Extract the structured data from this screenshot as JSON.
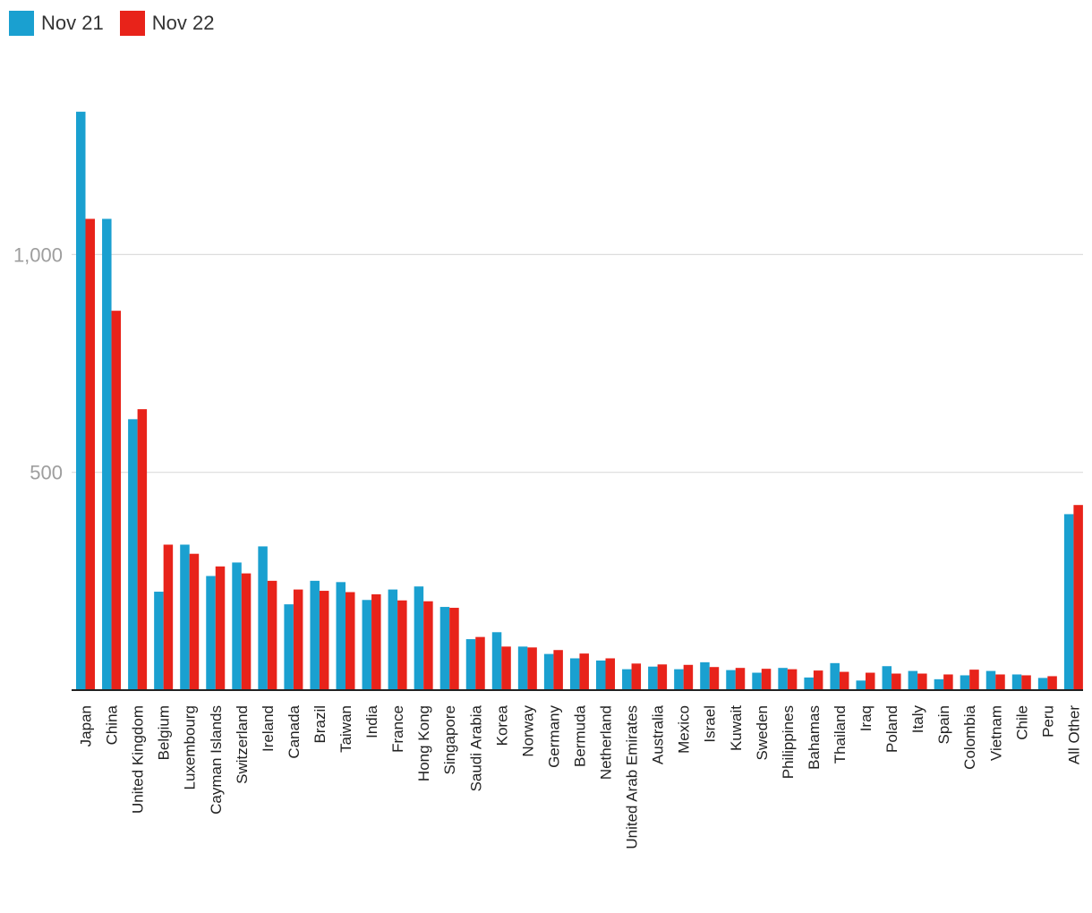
{
  "chart_data": {
    "type": "bar",
    "title": "",
    "xlabel": "",
    "ylabel": "",
    "ylim": [
      0,
      1400
    ],
    "yticks": [
      500,
      1000
    ],
    "ytick_labels": [
      "500",
      "1,000"
    ],
    "grid": true,
    "legend": "top-left",
    "categories": [
      "Japan",
      "China",
      "United Kingdom",
      "Belgium",
      "Luxembourg",
      "Cayman Islands",
      "Switzerland",
      "Ireland",
      "Canada",
      "Brazil",
      "Taiwan",
      "India",
      "France",
      "Hong Kong",
      "Singapore",
      "Saudi Arabia",
      "Korea",
      "Norway",
      "Germany",
      "Bermuda",
      "Netherland",
      "United Arab Emirates",
      "Australia",
      "Mexico",
      "Israel",
      "Kuwait",
      "Sweden",
      "Philippines",
      "Bahamas",
      "Thailand",
      "Iraq",
      "Poland",
      "Italy",
      "Spain",
      "Colombia",
      "Vietnam",
      "Chile",
      "Peru",
      "All Other"
    ],
    "series": [
      {
        "name": "Nov 21",
        "color": "#1aa0d0",
        "values": [
          1328,
          1082,
          622,
          226,
          334,
          262,
          293,
          330,
          197,
          251,
          248,
          207,
          231,
          238,
          191,
          117,
          133,
          100,
          83,
          73,
          68,
          48,
          54,
          48,
          64,
          46,
          40,
          51,
          29,
          62,
          22,
          55,
          44,
          25,
          34,
          44,
          36,
          28,
          404
        ]
      },
      {
        "name": "Nov 22",
        "color": "#e8231a",
        "values": [
          1082,
          871,
          645,
          334,
          313,
          284,
          268,
          251,
          231,
          228,
          225,
          220,
          206,
          204,
          189,
          122,
          100,
          98,
          92,
          84,
          73,
          61,
          59,
          58,
          53,
          51,
          49,
          48,
          45,
          42,
          40,
          38,
          38,
          36,
          47,
          36,
          34,
          32,
          425
        ]
      }
    ]
  }
}
